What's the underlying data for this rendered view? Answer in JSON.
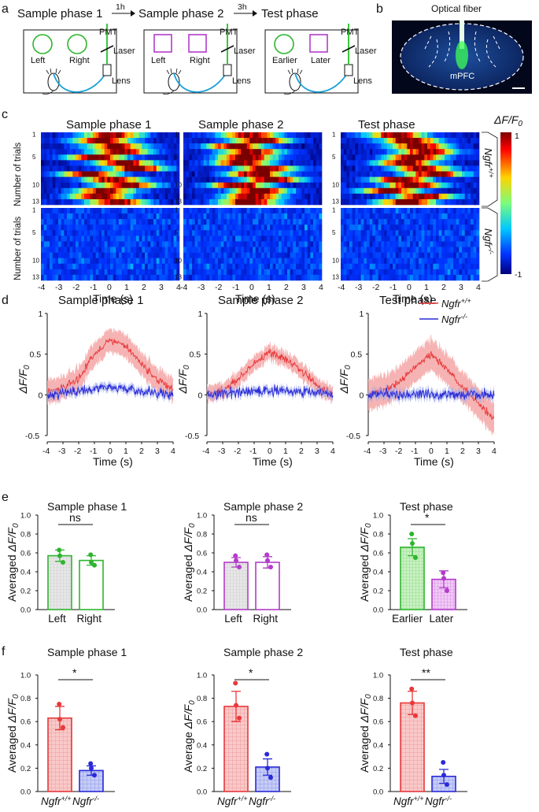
{
  "colors": {
    "wt": "#e8383a",
    "wt_fill": "#f4a6a6",
    "ko": "#2a2ad8",
    "ko_fill": "#9aa6ee",
    "green": "#2db52d",
    "purple": "#b23cc9"
  },
  "panel_letters": [
    "a",
    "b",
    "c",
    "d",
    "e",
    "f"
  ],
  "panel_a": {
    "phases": [
      "Sample phase 1",
      "Sample phase 2",
      "Test phase"
    ],
    "delays": [
      "1h",
      "3h"
    ],
    "boxes": [
      {
        "left_label": "Left",
        "right_label": "Right",
        "object_shape": "circle",
        "object_color": "#2db52d"
      },
      {
        "left_label": "Left",
        "right_label": "Right",
        "object_shape": "square",
        "object_color": "#b23cc9"
      },
      {
        "left_label": "Earlier",
        "right_label": "Later",
        "object_shape": "mixed",
        "object_color": "#2db52d"
      }
    ],
    "apparatus_labels": {
      "pmt": "PMT",
      "laser": "Laser",
      "lens": "Lens"
    },
    "icons": [
      "mouse-icon",
      "fiber-cable-icon"
    ]
  },
  "panel_b": {
    "label_top": "Optical fiber",
    "label_region": "mPFC",
    "icon": "brain-section-icon"
  },
  "panel_c": {
    "titles": [
      "Sample phase 1",
      "Sample phase 2",
      "Test phase"
    ],
    "ylabel": "Number of trials",
    "yticks": [
      "1",
      "5",
      "10",
      "13"
    ],
    "xticks": [
      "-4",
      "-3",
      "-2",
      "-1",
      "0",
      "1",
      "2",
      "3",
      "4"
    ],
    "xlabel": "Time (s)",
    "colorbar_title": "ΔF/F0",
    "colorbar_ticks": [
      "1",
      "-1"
    ],
    "groups": [
      {
        "genotype": "Ngfr",
        "superscript": "+/+"
      },
      {
        "genotype": "Ngfr",
        "superscript": "-/-"
      }
    ]
  },
  "chart_data": [
    {
      "type": "line",
      "title": "Sample phase 1",
      "xlabel": "Time (s)",
      "ylabel": "ΔF/F0",
      "xlim": [
        -4,
        4
      ],
      "ylim": [
        -0.5,
        1.0
      ],
      "xticks": [
        "-4",
        "-3",
        "-2",
        "-1",
        "0",
        "1",
        "2",
        "3",
        "4"
      ],
      "yticks": [
        "-0.5",
        "0",
        "0.5",
        "1"
      ],
      "x": [
        -4,
        -3,
        -2,
        -1,
        0,
        1,
        2,
        3,
        4
      ],
      "series": [
        {
          "name": "Ngfr+/+",
          "values": [
            0.05,
            0.08,
            0.2,
            0.5,
            0.68,
            0.6,
            0.38,
            0.18,
            0.07
          ],
          "sem": 0.15
        },
        {
          "name": "Ngfr-/-",
          "values": [
            0.0,
            0.02,
            0.05,
            0.08,
            0.1,
            0.06,
            0.04,
            0.02,
            0.0
          ],
          "sem": 0.05
        }
      ]
    },
    {
      "type": "line",
      "title": "Sample phase 2",
      "xlabel": "Time (s)",
      "ylabel": "ΔF/F0",
      "xlim": [
        -4,
        4
      ],
      "ylim": [
        -0.5,
        1.0
      ],
      "xticks": [
        "-4",
        "-3",
        "-2",
        "-1",
        "0",
        "1",
        "2",
        "3",
        "4"
      ],
      "yticks": [
        "-0.5",
        "0",
        "0.5",
        "1"
      ],
      "x": [
        -4,
        -3,
        -2,
        -1,
        0,
        1,
        2,
        3,
        4
      ],
      "series": [
        {
          "name": "Ngfr+/+",
          "values": [
            0.02,
            0.05,
            0.2,
            0.4,
            0.52,
            0.45,
            0.3,
            0.12,
            0.0
          ],
          "sem": 0.1
        },
        {
          "name": "Ngfr-/-",
          "values": [
            0.0,
            0.02,
            0.03,
            0.05,
            0.05,
            0.05,
            0.04,
            0.02,
            0.01
          ],
          "sem": 0.05
        }
      ]
    },
    {
      "type": "line",
      "title": "Test phase",
      "xlabel": "Time (s)",
      "ylabel": "ΔF/F0",
      "xlim": [
        -4,
        4
      ],
      "ylim": [
        -0.5,
        1.0
      ],
      "xticks": [
        "-4",
        "-3",
        "-2",
        "-1",
        "0",
        "1",
        "2",
        "3",
        "4"
      ],
      "yticks": [
        "-0.5",
        "0",
        "0.5",
        "1"
      ],
      "x": [
        -4,
        -3,
        -2,
        -1,
        0,
        1,
        2,
        3,
        4
      ],
      "series": [
        {
          "name": "Ngfr+/+",
          "values": [
            0.0,
            0.05,
            0.15,
            0.35,
            0.5,
            0.3,
            0.1,
            -0.1,
            -0.3
          ],
          "sem": 0.2
        },
        {
          "name": "Ngfr-/-",
          "values": [
            0.0,
            0.02,
            0.0,
            0.02,
            0.0,
            0.01,
            0.0,
            0.01,
            0.0
          ],
          "sem": 0.06
        }
      ]
    },
    {
      "type": "bar",
      "title": "Sample phase 1",
      "ylabel": "Averaged ΔF/F0",
      "ylim": [
        0,
        1.0
      ],
      "yticks": [
        "0.0",
        "0.2",
        "0.4",
        "0.6",
        "0.8",
        "1.0"
      ],
      "categories": [
        "Left",
        "Right"
      ],
      "values": [
        0.57,
        0.52
      ],
      "errors": [
        0.06,
        0.05
      ],
      "points": [
        [
          0.63,
          0.57,
          0.5
        ],
        [
          0.58,
          0.5,
          0.47
        ]
      ],
      "significance": "ns"
    },
    {
      "type": "bar",
      "title": "Sample phase 2",
      "ylabel": "Averaged ΔF/F0",
      "ylim": [
        0,
        1.0
      ],
      "yticks": [
        "0.0",
        "0.2",
        "0.4",
        "0.6",
        "0.8",
        "1.0"
      ],
      "categories": [
        "Left",
        "Right"
      ],
      "values": [
        0.5,
        0.5
      ],
      "errors": [
        0.05,
        0.06
      ],
      "points": [
        [
          0.57,
          0.52,
          0.45
        ],
        [
          0.58,
          0.52,
          0.45
        ]
      ],
      "significance": "ns"
    },
    {
      "type": "bar",
      "title": "Test phase",
      "ylabel": "Averaged ΔF/F0",
      "ylim": [
        0,
        1.0
      ],
      "yticks": [
        "0.0",
        "0.2",
        "0.4",
        "0.6",
        "0.8",
        "1.0"
      ],
      "categories": [
        "Earlier",
        "Later"
      ],
      "values": [
        0.66,
        0.32
      ],
      "errors": [
        0.09,
        0.09
      ],
      "points": [
        [
          0.8,
          0.7,
          0.55
        ],
        [
          0.39,
          0.33,
          0.2
        ]
      ],
      "significance": "*"
    },
    {
      "type": "bar",
      "title": "Sample phase 1",
      "ylabel": "Averaged ΔF/F0",
      "ylim": [
        0,
        1.0
      ],
      "yticks": [
        "0.0",
        "0.2",
        "0.4",
        "0.6",
        "0.8",
        "1.0"
      ],
      "categories": [
        "Ngfr+/+",
        "Ngfr-/-"
      ],
      "values": [
        0.63,
        0.18
      ],
      "errors": [
        0.1,
        0.04
      ],
      "points": [
        [
          0.75,
          0.62,
          0.55
        ],
        [
          0.24,
          0.2,
          0.14
        ]
      ],
      "significance": "*"
    },
    {
      "type": "bar",
      "title": "Sample phase 2",
      "ylabel": "Average ΔF/F0",
      "ylim": [
        0,
        1.0
      ],
      "yticks": [
        "0.0",
        "0.2",
        "0.4",
        "0.6",
        "0.8",
        "1.0"
      ],
      "categories": [
        "Ngfr+/+",
        "Ngfr-/-"
      ],
      "values": [
        0.73,
        0.21
      ],
      "errors": [
        0.13,
        0.07
      ],
      "points": [
        [
          0.93,
          0.74,
          0.63
        ],
        [
          0.32,
          0.2,
          0.12
        ]
      ],
      "significance": "*"
    },
    {
      "type": "bar",
      "title": "Test phase",
      "ylabel": "Averaged ΔF/F0",
      "ylim": [
        0,
        1.0
      ],
      "yticks": [
        "0.0",
        "0.2",
        "0.4",
        "0.6",
        "0.8",
        "1.0"
      ],
      "categories": [
        "Ngfr+/+",
        "Ngfr-/-"
      ],
      "values": [
        0.76,
        0.13
      ],
      "errors": [
        0.1,
        0.06
      ],
      "points": [
        [
          0.88,
          0.76,
          0.65
        ],
        [
          0.25,
          0.14,
          0.06
        ]
      ],
      "significance": "**"
    }
  ]
}
